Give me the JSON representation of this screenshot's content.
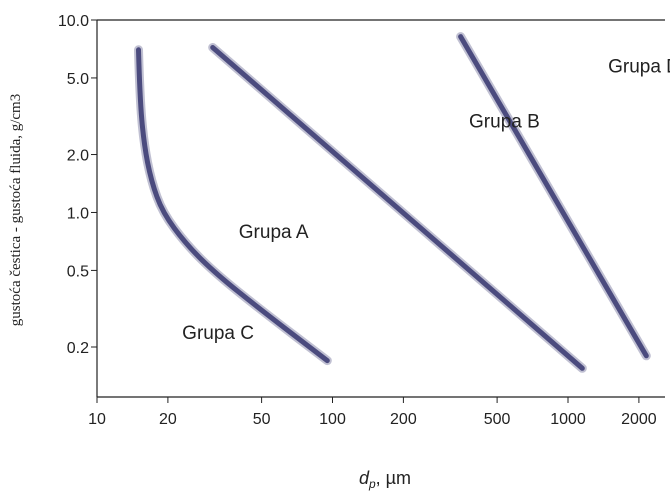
{
  "chart_data": {
    "type": "line",
    "xlabel_var": "d",
    "xlabel_sub": "p",
    "xlabel_unit": ", µm",
    "ylabel": "gustoća čestica - gustoća fluida, g/cm3",
    "x_scale": "log",
    "y_scale": "log",
    "xlim": [
      10,
      2200
    ],
    "ylim": [
      0.11,
      10.0
    ],
    "grid": false,
    "x_ticks": [
      {
        "value": 10,
        "label": "10"
      },
      {
        "value": 20,
        "label": "20"
      },
      {
        "value": 50,
        "label": "50"
      },
      {
        "value": 100,
        "label": "100"
      },
      {
        "value": 200,
        "label": "200"
      },
      {
        "value": 500,
        "label": "500"
      },
      {
        "value": 1000,
        "label": "1000"
      },
      {
        "value": 2000,
        "label": "2000"
      }
    ],
    "y_ticks": [
      {
        "value": 10.0,
        "label": "10.0"
      },
      {
        "value": 5.0,
        "label": "5.0"
      },
      {
        "value": 2.0,
        "label": "2.0"
      },
      {
        "value": 1.0,
        "label": "1.0"
      },
      {
        "value": 0.5,
        "label": "0.5"
      },
      {
        "value": 0.2,
        "label": "0.2"
      }
    ],
    "line_color": "#4b4b7e",
    "boundaries": [
      {
        "id": "c-a",
        "points": [
          [
            15.0,
            7.0
          ],
          [
            15.2,
            4.0
          ],
          [
            15.8,
            2.3
          ],
          [
            17.0,
            1.45
          ],
          [
            19.0,
            1.0
          ],
          [
            24.0,
            0.68
          ],
          [
            32.0,
            0.48
          ],
          [
            50.0,
            0.31
          ],
          [
            95.0,
            0.17
          ]
        ]
      },
      {
        "id": "a-b",
        "points": [
          [
            31.0,
            7.2
          ],
          [
            1150.0,
            0.155
          ]
        ]
      },
      {
        "id": "b-d",
        "points": [
          [
            350.0,
            8.2
          ],
          [
            2150.0,
            0.18
          ]
        ]
      }
    ],
    "group_labels": [
      {
        "text": "Grupa C",
        "x": 23,
        "y": 0.24
      },
      {
        "text": "Grupa A",
        "x": 40,
        "y": 0.8
      },
      {
        "text": "Grupa B",
        "x": 380,
        "y": 3.0
      },
      {
        "text": "Grupa D",
        "x": 1480,
        "y": 5.8
      }
    ]
  }
}
